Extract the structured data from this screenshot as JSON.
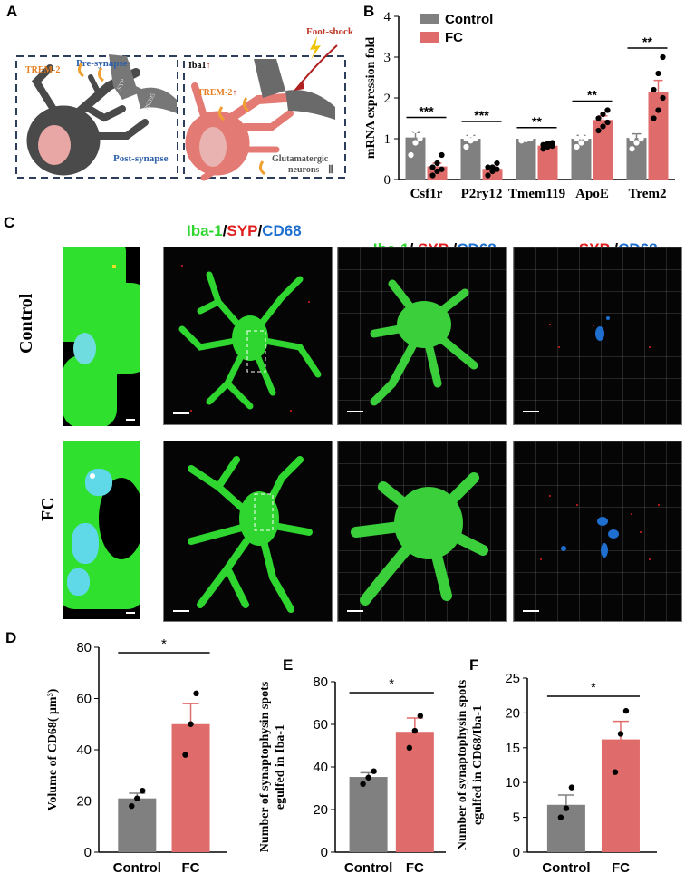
{
  "panels": {
    "A": {
      "label": "A",
      "left_box": {
        "trem2": "TREM-2",
        "pre_synapse": "Pre-synapse",
        "post_synapse": "Post-synapse",
        "syp": "SYP",
        "psd95": "PSD95"
      },
      "right_box": {
        "iba1": "Iba1",
        "iba1_arrow": "↑",
        "trem2": "TREM-2",
        "trem2_arrow": "↑",
        "foot_shock": "Foot-shock",
        "glut": "Glutamatergic",
        "neurons": "neurons",
        "neurons_mark": "Ⅱ"
      }
    },
    "B": {
      "label": "B"
    },
    "C": {
      "label": "C",
      "headers": {
        "h1": {
          "a": "Iba-1",
          "b": "/",
          "c": "SYP",
          "d": "/",
          "e": "CD68"
        },
        "h2": {
          "a": "Iba-1",
          "b": "/ ",
          "c": "SYP",
          "d": " /",
          "e": "CD68"
        },
        "h3": {
          "c": "SYP",
          "d": " /",
          "e": "CD68"
        }
      },
      "rows": [
        "Control",
        "FC"
      ]
    },
    "D": {
      "label": "D"
    },
    "E": {
      "label": "E"
    },
    "F": {
      "label": "F"
    }
  },
  "colors": {
    "control": "#808080",
    "fc": "#E06B6B",
    "green": "#2FD62F",
    "red": "#E02020",
    "blue": "#1E6FD0",
    "neuron": "#5a5a5a",
    "microglia": "#e47a74"
  },
  "chart_data": [
    {
      "id": "B",
      "type": "bar",
      "ylabel": "mRNA expression fold",
      "ylim": [
        0,
        4
      ],
      "yticks": [
        0,
        1,
        2,
        3,
        4
      ],
      "categories": [
        "Csf1r",
        "P2ry12",
        "Tmem119",
        "ApoE",
        "Trem2"
      ],
      "series": [
        {
          "name": "Control",
          "values": [
            1.03,
            1.0,
            1.0,
            1.0,
            1.02
          ],
          "sem": [
            0.12,
            0.08,
            0.03,
            0.08,
            0.1
          ],
          "points": [
            [
              0.6,
              0.9,
              1.0,
              1.1,
              1.2,
              1.3
            ],
            [
              0.8,
              0.95,
              1.0,
              1.0,
              1.1,
              1.2
            ],
            [
              0.95,
              0.98,
              1.0,
              1.0,
              1.02,
              1.05
            ],
            [
              0.8,
              0.9,
              1.0,
              1.0,
              1.05,
              1.2
            ],
            [
              0.75,
              0.9,
              1.0,
              1.0,
              1.2,
              1.3
            ]
          ]
        },
        {
          "name": "FC",
          "values": [
            0.32,
            0.26,
            0.83,
            1.46,
            2.15
          ],
          "sem": [
            0.08,
            0.05,
            0.04,
            0.1,
            0.28
          ],
          "points": [
            [
              0.1,
              0.2,
              0.25,
              0.3,
              0.4,
              0.6
            ],
            [
              0.1,
              0.2,
              0.25,
              0.3,
              0.3,
              0.4
            ],
            [
              0.75,
              0.8,
              0.82,
              0.85,
              0.88,
              0.9
            ],
            [
              1.2,
              1.3,
              1.4,
              1.5,
              1.6,
              1.7
            ],
            [
              1.5,
              1.7,
              2.0,
              2.2,
              2.6,
              3.0
            ]
          ]
        }
      ],
      "significance": [
        "***",
        "***",
        "**",
        "**",
        "**"
      ],
      "legend": [
        "Control",
        "FC"
      ]
    },
    {
      "id": "D",
      "type": "bar",
      "ylabel": "Volume of CD68( μm³)",
      "ylim": [
        0,
        80
      ],
      "yticks": [
        0,
        20,
        40,
        60,
        80
      ],
      "categories": [
        "Control",
        "FC"
      ],
      "values": [
        21,
        50
      ],
      "sem": [
        2,
        8
      ],
      "points": [
        [
          18,
          21,
          24
        ],
        [
          38,
          50,
          62
        ]
      ],
      "significance": "*"
    },
    {
      "id": "E",
      "type": "bar",
      "ylabel": [
        "Number of synaptophysin spots",
        "egulfed in Iba-1"
      ],
      "ylim": [
        0,
        80
      ],
      "yticks": [
        0,
        20,
        40,
        60,
        80
      ],
      "categories": [
        "Control",
        "FC"
      ],
      "values": [
        35.3,
        56.5
      ],
      "sem": [
        2,
        6.5
      ],
      "points": [
        [
          32,
          35,
          38
        ],
        [
          49,
          57,
          64
        ]
      ],
      "significance": "*"
    },
    {
      "id": "F",
      "type": "bar",
      "ylabel": [
        "Number of synaptophysin spots",
        "egulfed in CD68/Iba-1"
      ],
      "ylim": [
        0,
        25
      ],
      "yticks": [
        0,
        5,
        10,
        15,
        20,
        25
      ],
      "categories": [
        "Control",
        "FC"
      ],
      "values": [
        6.8,
        16.2
      ],
      "sem": [
        1.4,
        2.6
      ],
      "points": [
        [
          5,
          6.3,
          9.3
        ],
        [
          11.5,
          17,
          20.3
        ]
      ],
      "significance": "*"
    }
  ]
}
